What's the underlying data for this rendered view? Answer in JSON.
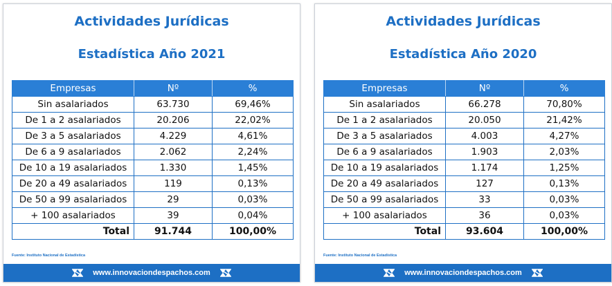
{
  "left": {
    "title": "Actividades Jurídicas",
    "subtitle": "Estadística Año 2021",
    "headers": [
      "Empresas",
      "Nº",
      "%"
    ],
    "rows": [
      [
        "Sin asalariados",
        "63.730",
        "69,46%"
      ],
      [
        "De 1 a 2 asalariados",
        "20.206",
        "22,02%"
      ],
      [
        "De 3 a 5 asalariados",
        "4.229",
        "4,61%"
      ],
      [
        "De 6 a 9 asalariados",
        "2.062",
        "2,24%"
      ],
      [
        "De 10 a 19 asalariados",
        "1.330",
        "1,45%"
      ],
      [
        "De 20 a 49 asalariados",
        "119",
        "0,13%"
      ],
      [
        "De 50 a 99 asalariados",
        "29",
        "0,03%"
      ],
      [
        "+ 100 asalariados",
        "39",
        "0,04%"
      ]
    ],
    "total": [
      "Total",
      "91.744",
      "100,00%"
    ],
    "source": "Fuente: Instituto Nacional de Estadística",
    "footer_url": "www.innovaciondespachos.com"
  },
  "right": {
    "title": "Actividades Jurídicas",
    "subtitle": "Estadística Año 2020",
    "headers": [
      "Empresas",
      "Nº",
      "%"
    ],
    "rows": [
      [
        "Sin asalariados",
        "66.278",
        "70,80%"
      ],
      [
        "De 1 a 2 asalariados",
        "20.050",
        "21,42%"
      ],
      [
        "De 3 a 5 asalariados",
        "4.003",
        "4,27%"
      ],
      [
        "De 6 a 9 asalariados",
        "1.903",
        "2,03%"
      ],
      [
        "De 10 a 19 asalariados",
        "1.174",
        "1,25%"
      ],
      [
        "De 20 a 49 asalariados",
        "127",
        "0,13%"
      ],
      [
        "De 50 a 99 asalariados",
        "33",
        "0,03%"
      ],
      [
        "+ 100 asalariados",
        "36",
        "0,03%"
      ]
    ],
    "total": [
      "Total",
      "93.604",
      "100,00%"
    ],
    "source": "Fuente: Instituto Nacional de Estadística",
    "footer_url": "www.innovaciondespachos.com"
  },
  "colors": {
    "accent": "#1d6fc4",
    "header_bg": "#2a7fd6",
    "footer_bg": "#1d6fc4"
  },
  "icons": [
    "logo-icon"
  ]
}
